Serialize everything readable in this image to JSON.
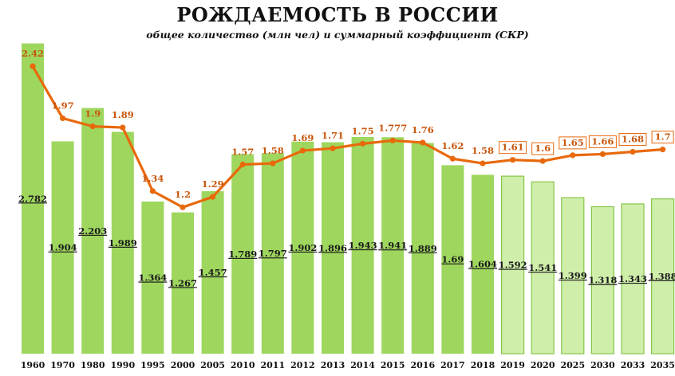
{
  "title": "РОЖДАЕМОСТЬ В РОССИИ",
  "subtitle": "общее количество (млн чел) и суммарный коэффициент (СКР)",
  "colors": {
    "bar_fill": "#9ed65e",
    "bar_forecast_fill": "#cfeeaa",
    "bar_forecast_stroke": "#86c64a",
    "line": "#e8690c",
    "rate_label": "#c8550a"
  },
  "chart_data": {
    "type": "bar",
    "categories": [
      "1960",
      "1970",
      "1980",
      "1990",
      "1995",
      "2000",
      "2005",
      "2010",
      "2011",
      "2012",
      "2013",
      "2014",
      "2015",
      "2016",
      "2017",
      "2018",
      "2019",
      "2020",
      "2025",
      "2030",
      "2033",
      "2035"
    ],
    "forecast_from_index": 16,
    "series": [
      {
        "type": "bar",
        "values": [
          2.782,
          1.904,
          2.203,
          1.989,
          1.364,
          1.267,
          1.457,
          1.789,
          1.797,
          1.902,
          1.896,
          1.943,
          1.941,
          1.889,
          1.69,
          1.604,
          1.592,
          1.541,
          1.399,
          1.318,
          1.343,
          1.388
        ],
        "labels": [
          "2.782",
          "1.904",
          "2.203",
          "1.989",
          "1.364",
          "1.267",
          "1.457",
          "1.789",
          "1.797",
          "1.902",
          "1.896",
          "1.943",
          "1.941",
          "1.889",
          "1.69",
          "1.604",
          "1.592",
          "1.541",
          "1.399",
          "1.318",
          "1.343",
          "1.388"
        ]
      },
      {
        "type": "line",
        "values": [
          2.42,
          1.97,
          1.9,
          1.89,
          1.34,
          1.2,
          1.29,
          1.57,
          1.58,
          1.69,
          1.71,
          1.75,
          1.777,
          1.76,
          1.62,
          1.58,
          1.61,
          1.6,
          1.65,
          1.66,
          1.68,
          1.7
        ],
        "labels": [
          "2.42",
          "1.97",
          "1.9",
          "1.89",
          "1.34",
          "1.2",
          "1.29",
          "1.57",
          "1.58",
          "1.69",
          "1.71",
          "1.75",
          "1.777",
          "1.76",
          "1.62",
          "1.58",
          "1.61",
          "1.6",
          "1.65",
          "1.66",
          "1.68",
          "1.7"
        ]
      }
    ],
    "legend": "none",
    "grid": false
  }
}
